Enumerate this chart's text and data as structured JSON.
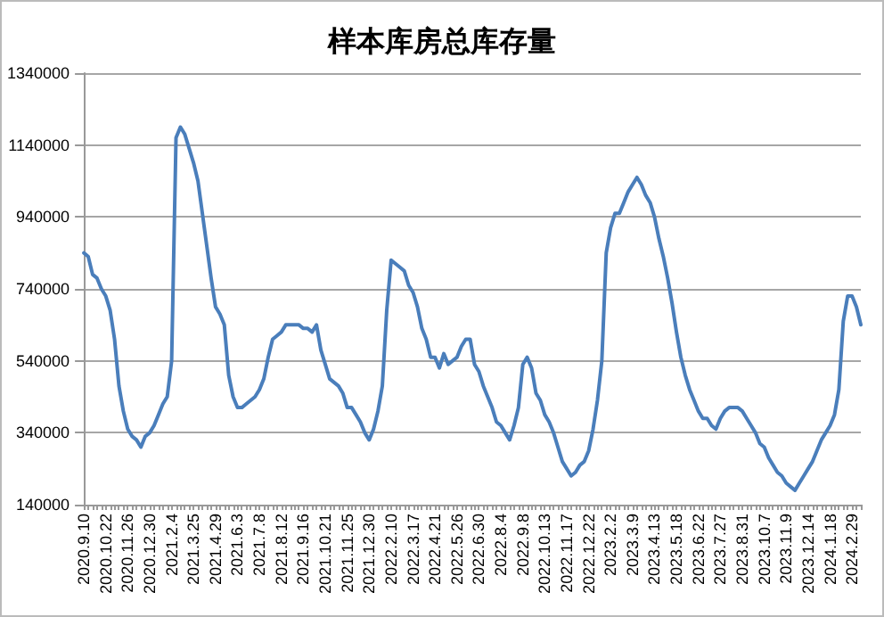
{
  "chart_data": {
    "type": "line",
    "title": "样本库房总库存量",
    "categories": [
      "2020.9.10",
      null,
      null,
      null,
      null,
      "2020.10.22",
      null,
      null,
      null,
      null,
      "2020.11.26",
      null,
      null,
      null,
      null,
      "2020.12.30",
      null,
      null,
      null,
      null,
      "2021.2.4",
      null,
      null,
      null,
      null,
      "2021.3.25",
      null,
      null,
      null,
      null,
      "2021.4.29",
      null,
      null,
      null,
      null,
      "2021.6.3",
      null,
      null,
      null,
      null,
      "2021.7.8",
      null,
      null,
      null,
      null,
      "2021.8.12",
      null,
      null,
      null,
      null,
      "2021.9.16",
      null,
      null,
      null,
      null,
      "2021.10.21",
      null,
      null,
      null,
      null,
      "2021.11.25",
      null,
      null,
      null,
      null,
      "2021.12.30",
      null,
      null,
      null,
      null,
      "2022.2.10",
      null,
      null,
      null,
      null,
      "2022.3.17",
      null,
      null,
      null,
      null,
      "2022.4.21",
      null,
      null,
      null,
      null,
      "2022.5.26",
      null,
      null,
      null,
      null,
      "2022.6.30",
      null,
      null,
      null,
      null,
      "2022.8.4",
      null,
      null,
      null,
      null,
      "2022.9.8",
      null,
      null,
      null,
      null,
      "2022.10.13",
      null,
      null,
      null,
      null,
      "2022.11.17",
      null,
      null,
      null,
      null,
      "2022.12.22",
      null,
      null,
      null,
      null,
      "2023.2.2",
      null,
      null,
      null,
      null,
      "2023.3.9",
      null,
      null,
      null,
      null,
      "2023.4.13",
      null,
      null,
      null,
      null,
      "2023.5.18",
      null,
      null,
      null,
      null,
      "2023.6.22",
      null,
      null,
      null,
      null,
      "2023.7.27",
      null,
      null,
      null,
      null,
      "2023.8.31",
      null,
      null,
      null,
      null,
      "2023.10.7",
      null,
      null,
      null,
      null,
      "2023.11.9",
      null,
      null,
      null,
      null,
      "2023.12.14",
      null,
      null,
      null,
      null,
      "2024.1.18",
      null,
      null,
      null,
      null,
      "2024.2.29",
      null,
      null
    ],
    "series": [
      {
        "color": "#4a7ebb",
        "values": [
          840000,
          830000,
          780000,
          770000,
          740000,
          720000,
          680000,
          600000,
          470000,
          400000,
          350000,
          330000,
          320000,
          300000,
          330000,
          340000,
          360000,
          390000,
          420000,
          440000,
          540000,
          1160000,
          1190000,
          1170000,
          1130000,
          1090000,
          1040000,
          950000,
          860000,
          770000,
          690000,
          670000,
          640000,
          500000,
          440000,
          410000,
          410000,
          420000,
          430000,
          440000,
          460000,
          490000,
          550000,
          600000,
          610000,
          620000,
          640000,
          640000,
          640000,
          640000,
          630000,
          630000,
          620000,
          640000,
          570000,
          530000,
          490000,
          480000,
          470000,
          450000,
          410000,
          410000,
          390000,
          370000,
          340000,
          320000,
          350000,
          400000,
          470000,
          680000,
          820000,
          810000,
          800000,
          790000,
          750000,
          730000,
          690000,
          630000,
          600000,
          550000,
          550000,
          520000,
          560000,
          530000,
          540000,
          550000,
          580000,
          600000,
          600000,
          530000,
          510000,
          470000,
          440000,
          410000,
          370000,
          360000,
          340000,
          320000,
          360000,
          410000,
          530000,
          550000,
          520000,
          450000,
          430000,
          390000,
          370000,
          340000,
          300000,
          260000,
          240000,
          220000,
          230000,
          250000,
          260000,
          290000,
          350000,
          430000,
          540000,
          840000,
          910000,
          950000,
          950000,
          980000,
          1010000,
          1030000,
          1050000,
          1030000,
          1000000,
          980000,
          940000,
          880000,
          830000,
          770000,
          700000,
          620000,
          550000,
          500000,
          460000,
          430000,
          400000,
          380000,
          380000,
          360000,
          350000,
          380000,
          400000,
          410000,
          410000,
          410000,
          400000,
          380000,
          360000,
          340000,
          310000,
          300000,
          270000,
          250000,
          230000,
          220000,
          200000,
          190000,
          180000,
          200000,
          220000,
          240000,
          260000,
          290000,
          320000,
          340000,
          360000,
          390000,
          460000,
          650000,
          720000,
          720000,
          690000,
          640000
        ]
      }
    ],
    "ylim": [
      140000,
      1340000
    ],
    "yticks": [
      140000,
      340000,
      540000,
      740000,
      940000,
      1140000,
      1340000
    ],
    "grid": "y",
    "marker": "none",
    "line_style": "solid"
  }
}
